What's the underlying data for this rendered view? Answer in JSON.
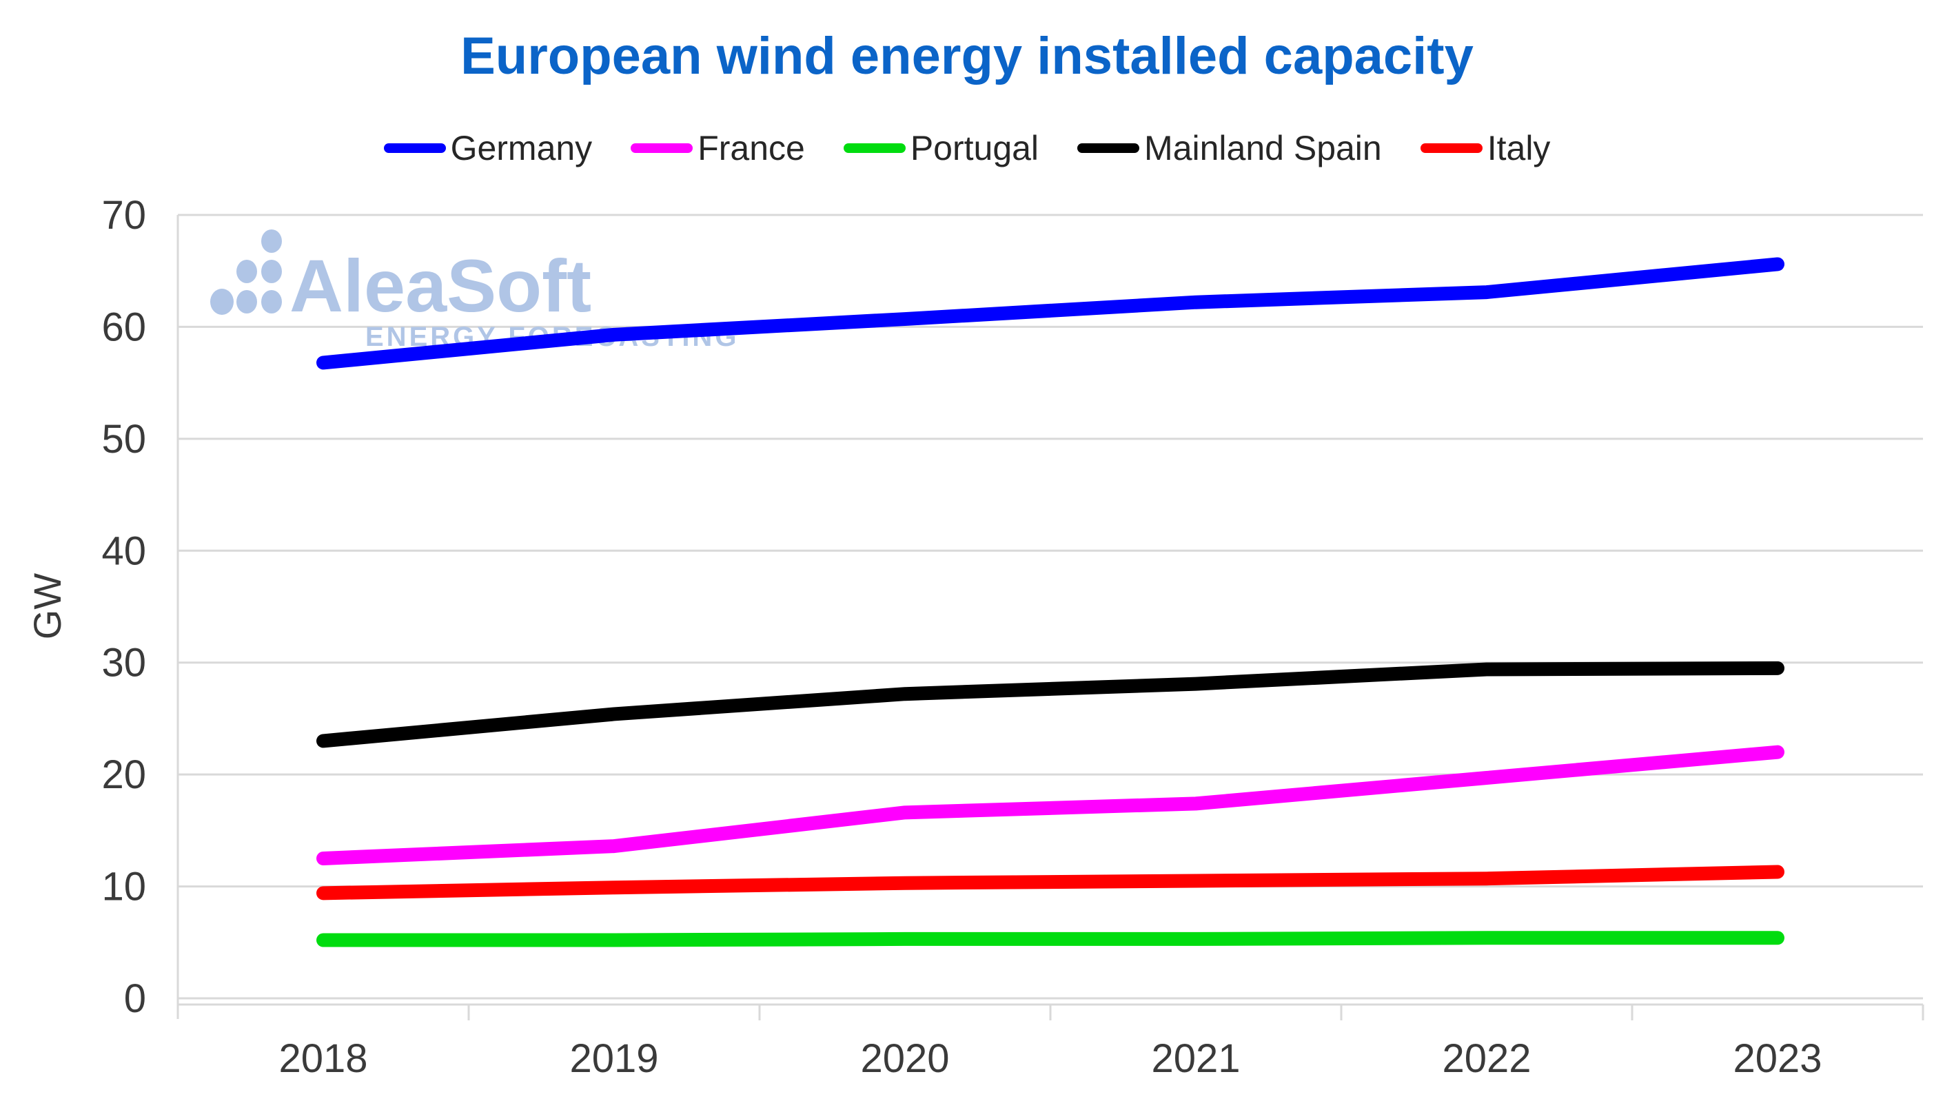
{
  "title": {
    "text": "European wind energy installed capacity",
    "color": "#0b64c8"
  },
  "watermark": {
    "brand": "AleaSoft",
    "tagline": "ENERGY FORECASTING",
    "color": "#b0c5e6"
  },
  "axis": {
    "y_label": "GW",
    "y_ticks": [
      0,
      10,
      20,
      30,
      40,
      50,
      60,
      70
    ],
    "x_ticks": [
      "2018",
      "2019",
      "2020",
      "2021",
      "2022",
      "2023"
    ],
    "tick_color": "#3a3a3a",
    "grid_color": "#d9d9d9"
  },
  "chart_data": {
    "type": "line",
    "title": "European wind energy installed capacity",
    "xlabel": "",
    "ylabel": "GW",
    "ylim": [
      0,
      70
    ],
    "ytick_step": 10,
    "grid": "horizontal",
    "legend_position": "top",
    "x": [
      "2018",
      "2019",
      "2020",
      "2021",
      "2022",
      "2023"
    ],
    "series": [
      {
        "name": "Germany",
        "color": "#0000ff",
        "values": [
          56.8,
          59.3,
          60.7,
          62.2,
          63.1,
          65.6
        ]
      },
      {
        "name": "France",
        "color": "#ff00ff",
        "values": [
          12.5,
          13.6,
          16.6,
          17.4,
          19.7,
          22.0
        ]
      },
      {
        "name": "Portugal",
        "color": "#00dc0f",
        "values": [
          5.2,
          5.2,
          5.3,
          5.3,
          5.4,
          5.4
        ]
      },
      {
        "name": "Mainland Spain",
        "color": "#000000",
        "values": [
          23.0,
          25.4,
          27.2,
          28.1,
          29.4,
          29.5
        ]
      },
      {
        "name": "Italy",
        "color": "#ff0000",
        "values": [
          9.4,
          9.9,
          10.3,
          10.5,
          10.7,
          11.3
        ]
      }
    ]
  }
}
